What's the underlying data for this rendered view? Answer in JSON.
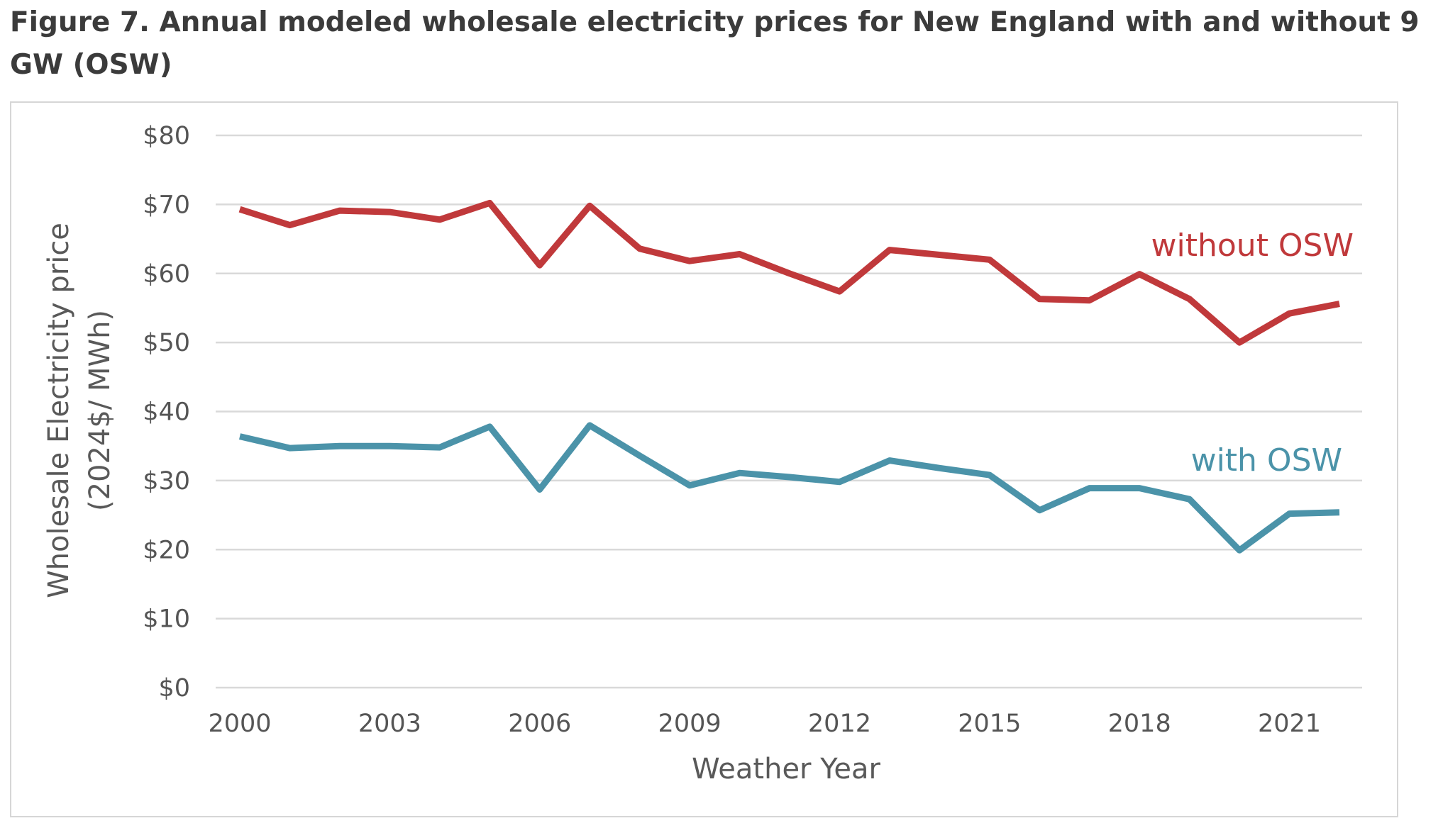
{
  "figure": {
    "title": "Figure 7. Annual modeled wholesale electricity prices for New England with and without 9 GW (OSW)"
  },
  "chart_data": {
    "type": "line",
    "title": "",
    "xlabel": "Weather Year",
    "ylabel": "Wholesale Electricity price",
    "ylabel_units": "(2024$/ MWh)",
    "x": [
      2000,
      2001,
      2002,
      2003,
      2004,
      2005,
      2006,
      2007,
      2008,
      2009,
      2010,
      2011,
      2012,
      2013,
      2014,
      2015,
      2016,
      2017,
      2018,
      2019,
      2020,
      2021,
      2022
    ],
    "x_tick_values": [
      2000,
      2003,
      2006,
      2009,
      2012,
      2015,
      2018,
      2021
    ],
    "x_tick_labels": [
      "2000",
      "2003",
      "2006",
      "2009",
      "2012",
      "2015",
      "2018",
      "2021"
    ],
    "xlim": [
      2000,
      2022
    ],
    "ylim": [
      0,
      80
    ],
    "y_tick_values": [
      0,
      10,
      20,
      30,
      40,
      50,
      60,
      70,
      80
    ],
    "y_tick_labels": [
      "$0",
      "$10",
      "$20",
      "$30",
      "$40",
      "$50",
      "$60",
      "$70",
      "$80"
    ],
    "grid": "horizontal",
    "legend": "inline labels at right end of lines",
    "series": [
      {
        "name": "without OSW",
        "color": "#c0393b",
        "values": [
          69.3,
          67.0,
          69.1,
          68.9,
          67.8,
          70.2,
          61.2,
          69.8,
          63.6,
          61.8,
          62.8,
          60.0,
          57.4,
          63.4,
          62.7,
          62.0,
          56.3,
          56.1,
          59.9,
          56.3,
          50.0,
          54.2,
          55.6
        ]
      },
      {
        "name": "with OSW",
        "color": "#4b93a9",
        "values": [
          36.4,
          34.7,
          35.0,
          35.0,
          34.8,
          37.8,
          28.7,
          38.0,
          33.6,
          29.3,
          31.1,
          30.5,
          29.8,
          32.9,
          31.8,
          30.8,
          25.7,
          28.9,
          28.9,
          27.3,
          19.9,
          25.2,
          25.4
        ]
      }
    ]
  }
}
